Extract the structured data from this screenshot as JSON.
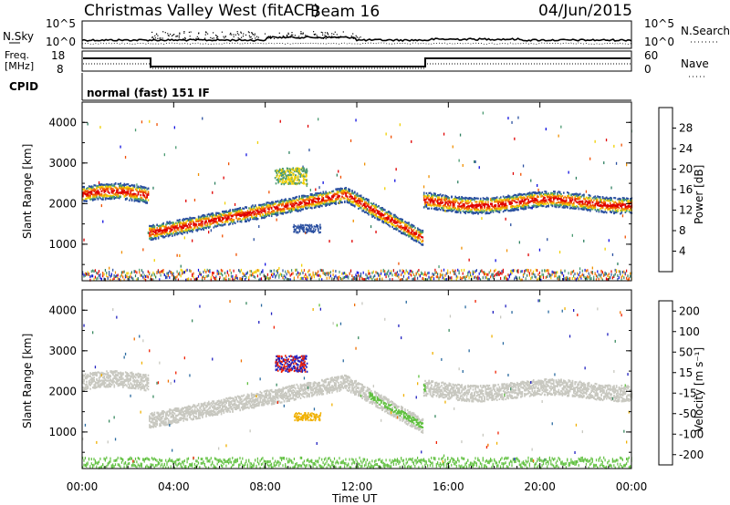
{
  "header": {
    "title": "Christmas Valley West (fitACF)",
    "beam": "Beam 16",
    "date": "04/Jun/2015"
  },
  "top_panels": {
    "nsky_label": "N.Sky",
    "nsearch_label": "N.Search",
    "nsky_ticks": [
      "10^5",
      "10^0"
    ],
    "nsearch_ticks": [
      "10^5",
      "10^0"
    ],
    "freq_label_1": "Freq.",
    "freq_label_2": "[MHz]",
    "freq_ticks": [
      "18",
      "8"
    ],
    "nave_label": "Nave",
    "nave_ticks": [
      "60",
      "0"
    ],
    "cpid_label": "CPID",
    "cpid_value": "normal (fast) 151 IF"
  },
  "colors": {
    "power_scale": [
      "#1010e0",
      "#2a4fa0",
      "#2e8060",
      "#4a9a70",
      "#f0d000",
      "#f09000",
      "#f05000",
      "#e00000"
    ],
    "velocity_scale": [
      "#2020c0",
      "#2a6aa0",
      "#3a8a60",
      "#60c040",
      "#c8c8c0",
      "#f0b000",
      "#f07000",
      "#f02000"
    ]
  },
  "chart_data": [
    {
      "type": "heatmap",
      "panel": "power",
      "ylabel": "Slant Range [km]",
      "ylim": [
        100,
        4500
      ],
      "yticks": [
        "1000",
        "2000",
        "3000",
        "4000"
      ],
      "xlim": [
        0,
        24
      ],
      "xticks": [
        "00:00",
        "04:00",
        "08:00",
        "12:00",
        "16:00",
        "20:00",
        "00:00"
      ],
      "colorbar_label": "Power [dB]",
      "colorbar_ticks": [
        "4",
        "8",
        "12",
        "16",
        "20",
        "24",
        "28"
      ],
      "colorbar_range": [
        0,
        30
      ]
    },
    {
      "type": "heatmap",
      "panel": "velocity",
      "ylabel": "Slant Range [km]",
      "ylim": [
        100,
        4500
      ],
      "yticks": [
        "1000",
        "2000",
        "3000",
        "4000"
      ],
      "xlim": [
        0,
        24
      ],
      "xticks": [
        "00:00",
        "04:00",
        "08:00",
        "12:00",
        "16:00",
        "20:00",
        "00:00"
      ],
      "xlabel": "Time UT",
      "colorbar_label": "Velocity [m s⁻¹]",
      "colorbar_ticks": [
        "200",
        "100",
        "50",
        "15",
        "-15",
        "-50",
        "-100",
        "-200"
      ],
      "colorbar_range": [
        -250,
        250
      ]
    }
  ]
}
